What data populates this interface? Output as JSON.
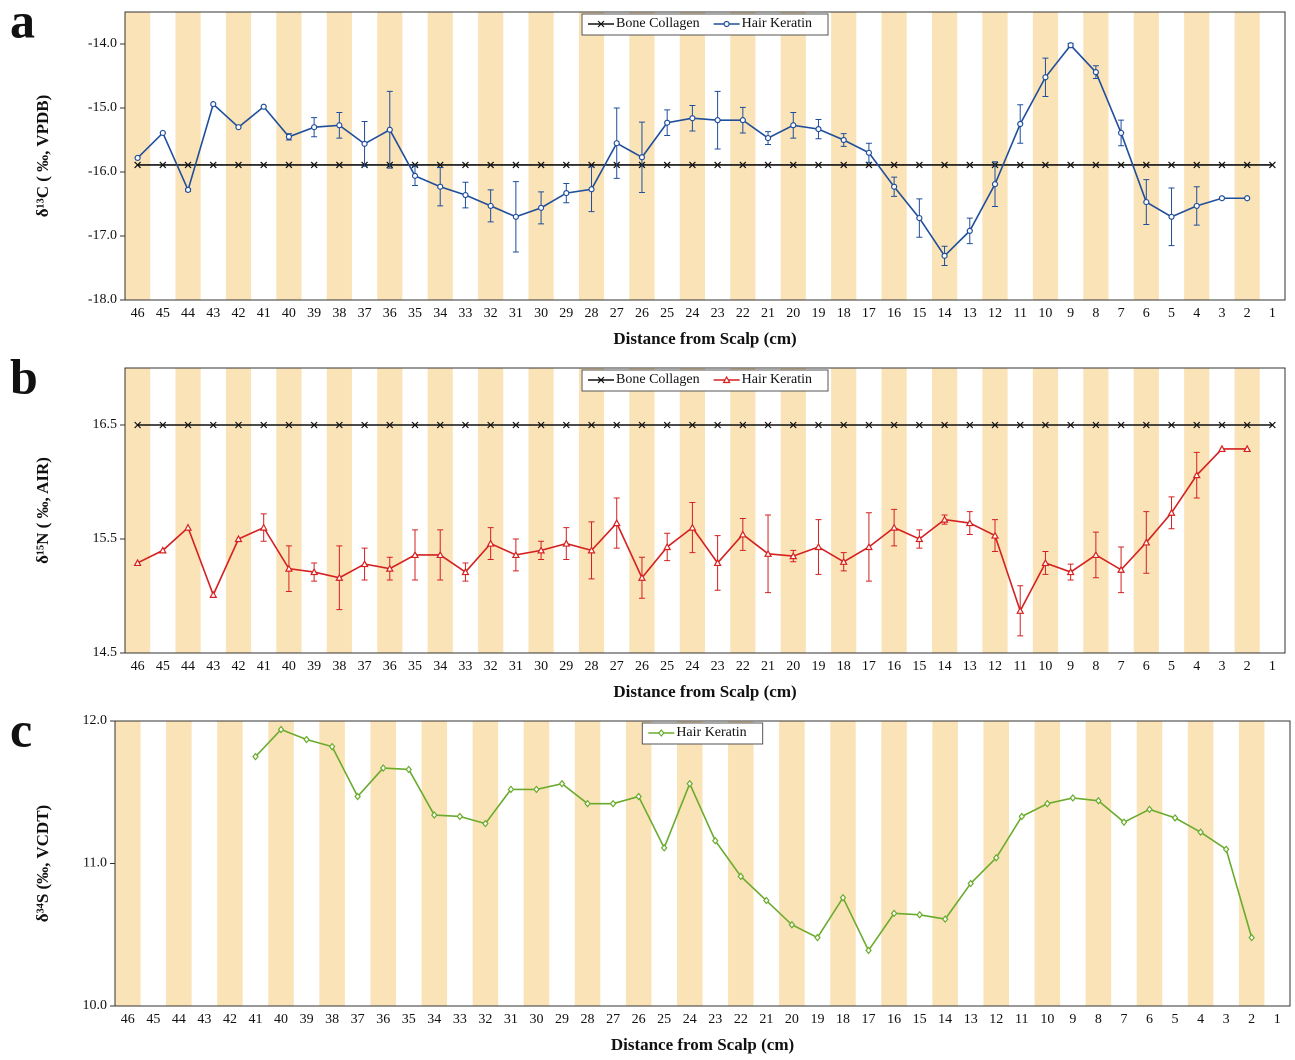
{
  "chart_data": [
    {
      "type": "line",
      "label": "a",
      "ylabel": "δ¹³C ( ‰, VPDB)",
      "xlabel": "Distance from Scalp  (cm)",
      "categories": [
        "46",
        "45",
        "44",
        "43",
        "42",
        "41",
        "40",
        "39",
        "38",
        "37",
        "36",
        "35",
        "34",
        "33",
        "32",
        "31",
        "30",
        "29",
        "28",
        "27",
        "26",
        "25",
        "24",
        "23",
        "22",
        "21",
        "20",
        "19",
        "18",
        "17",
        "16",
        "15",
        "14",
        "13",
        "12",
        "11",
        "10",
        "9",
        "8",
        "7",
        "6",
        "5",
        "4",
        "3",
        "2",
        "1"
      ],
      "ylim": [
        -18,
        -13.5
      ],
      "yticks": [
        {
          "value": -18,
          "label": "-18.0"
        },
        {
          "value": -17,
          "label": "-17.0"
        },
        {
          "value": -16,
          "label": "-16.0"
        },
        {
          "value": -15,
          "label": "-15.0"
        },
        {
          "value": -14,
          "label": "-14.0"
        }
      ],
      "band_color": "#fbe3b8",
      "series": [
        {
          "name": "Bone Collagen",
          "color": "#111111",
          "marker": "x",
          "values": [
            -15.89,
            -15.89,
            -15.89,
            -15.89,
            -15.89,
            -15.89,
            -15.89,
            -15.89,
            -15.89,
            -15.89,
            -15.89,
            -15.89,
            -15.89,
            -15.89,
            -15.89,
            -15.89,
            -15.89,
            -15.89,
            -15.89,
            -15.89,
            -15.89,
            -15.89,
            -15.89,
            -15.89,
            -15.89,
            -15.89,
            -15.89,
            -15.89,
            -15.89,
            -15.89,
            -15.89,
            -15.89,
            -15.89,
            -15.89,
            -15.89,
            -15.89,
            -15.89,
            -15.89,
            -15.89,
            -15.89,
            -15.89,
            -15.89,
            -15.89,
            -15.89,
            -15.89,
            -15.89
          ]
        },
        {
          "name": "Hair Keratin",
          "color": "#1f4e9a",
          "marker": "circle",
          "values": [
            -15.78,
            -15.39,
            -16.28,
            -14.94,
            -15.3,
            -14.98,
            -15.45,
            -15.3,
            -15.27,
            -15.56,
            -15.34,
            -16.06,
            -16.23,
            -16.36,
            -16.53,
            -16.7,
            -16.56,
            -16.33,
            -16.27,
            -15.55,
            -15.77,
            -15.23,
            -15.16,
            -15.19,
            -15.19,
            -15.47,
            -15.27,
            -15.33,
            -15.5,
            -15.7,
            -16.23,
            -16.72,
            -17.31,
            -16.92,
            -16.19,
            -15.25,
            -14.52,
            -14.02,
            -14.44,
            -15.39,
            -16.47,
            -16.7,
            -16.53,
            -16.41,
            -16.41,
            null
          ],
          "errors": [
            null,
            null,
            0.02,
            null,
            null,
            null,
            0.05,
            0.15,
            0.2,
            0.35,
            0.6,
            0.15,
            0.3,
            0.2,
            0.25,
            0.55,
            0.25,
            0.15,
            0.35,
            0.55,
            0.55,
            0.2,
            0.2,
            0.45,
            0.2,
            0.1,
            0.2,
            0.15,
            0.1,
            0.15,
            0.15,
            0.3,
            0.15,
            0.2,
            0.35,
            0.3,
            0.3,
            0.03,
            0.1,
            0.2,
            0.35,
            0.45,
            0.3,
            null,
            null,
            null
          ]
        }
      ]
    },
    {
      "type": "line",
      "label": "b",
      "ylabel": "δ¹⁵N ( ‰, AIR)",
      "xlabel": "Distance from Scalp (cm)",
      "categories": [
        "46",
        "45",
        "44",
        "43",
        "42",
        "41",
        "40",
        "39",
        "38",
        "37",
        "36",
        "35",
        "34",
        "33",
        "32",
        "31",
        "30",
        "29",
        "28",
        "27",
        "26",
        "25",
        "24",
        "23",
        "22",
        "21",
        "20",
        "19",
        "18",
        "17",
        "16",
        "15",
        "14",
        "13",
        "12",
        "11",
        "10",
        "9",
        "8",
        "7",
        "6",
        "5",
        "4",
        "3",
        "2",
        "1"
      ],
      "ylim": [
        14.5,
        17.0
      ],
      "yticks": [
        14.5,
        15.5,
        16.5
      ],
      "band_color": "#fbe3b8",
      "series": [
        {
          "name": "Bone Collagen",
          "color": "#111111",
          "marker": "x",
          "values": [
            16.5,
            16.5,
            16.5,
            16.5,
            16.5,
            16.5,
            16.5,
            16.5,
            16.5,
            16.5,
            16.5,
            16.5,
            16.5,
            16.5,
            16.5,
            16.5,
            16.5,
            16.5,
            16.5,
            16.5,
            16.5,
            16.5,
            16.5,
            16.5,
            16.5,
            16.5,
            16.5,
            16.5,
            16.5,
            16.5,
            16.5,
            16.5,
            16.5,
            16.5,
            16.5,
            16.5,
            16.5,
            16.5,
            16.5,
            16.5,
            16.5,
            16.5,
            16.5,
            16.5,
            16.5,
            16.5
          ]
        },
        {
          "name": "Hair Keratin",
          "color": "#d42020",
          "marker": "triangle",
          "values": [
            15.29,
            15.4,
            15.6,
            15.01,
            15.5,
            15.6,
            15.24,
            15.21,
            15.16,
            15.28,
            15.24,
            15.36,
            15.36,
            15.21,
            15.46,
            15.36,
            15.4,
            15.46,
            15.4,
            15.64,
            15.16,
            15.43,
            15.6,
            15.29,
            15.54,
            15.37,
            15.35,
            15.43,
            15.3,
            15.43,
            15.6,
            15.5,
            15.67,
            15.64,
            15.53,
            14.87,
            15.29,
            15.21,
            15.36,
            15.23,
            15.47,
            15.73,
            16.06,
            16.29,
            16.29,
            null
          ],
          "errors": [
            null,
            null,
            null,
            null,
            null,
            0.12,
            0.2,
            0.08,
            0.28,
            0.14,
            0.1,
            0.22,
            0.22,
            0.08,
            0.14,
            0.14,
            0.08,
            0.14,
            0.25,
            0.22,
            0.18,
            0.12,
            0.22,
            0.24,
            0.14,
            0.34,
            0.05,
            0.24,
            0.08,
            0.3,
            0.16,
            0.08,
            0.04,
            0.1,
            0.14,
            0.22,
            0.1,
            0.07,
            0.2,
            0.2,
            0.27,
            0.14,
            0.2,
            null,
            null,
            null
          ]
        }
      ]
    },
    {
      "type": "line",
      "label": "c",
      "ylabel": "δ³⁴S (‰, VCDT)",
      "xlabel": "Distance from Scalp (cm)",
      "categories": [
        "46",
        "45",
        "44",
        "43",
        "42",
        "41",
        "40",
        "39",
        "38",
        "37",
        "36",
        "35",
        "34",
        "33",
        "32",
        "31",
        "30",
        "29",
        "28",
        "27",
        "26",
        "25",
        "24",
        "23",
        "22",
        "21",
        "20",
        "19",
        "18",
        "17",
        "16",
        "15",
        "14",
        "13",
        "12",
        "11",
        "10",
        "9",
        "8",
        "7",
        "6",
        "5",
        "4",
        "3",
        "2",
        "1"
      ],
      "ylim": [
        10,
        12
      ],
      "yticks": [
        {
          "value": 10,
          "label": "10.0"
        },
        {
          "value": 11,
          "label": "11.0"
        },
        {
          "value": 12,
          "label": "12.0"
        }
      ],
      "band_color": "#fbe3b8",
      "series": [
        {
          "name": "Hair Keratin",
          "color": "#6aab2e",
          "marker": "diamond",
          "values": [
            null,
            null,
            null,
            null,
            null,
            11.75,
            11.94,
            11.87,
            11.82,
            11.47,
            11.67,
            11.66,
            11.34,
            11.33,
            11.28,
            11.52,
            11.52,
            11.56,
            11.42,
            11.42,
            11.47,
            11.11,
            11.56,
            11.16,
            10.91,
            10.74,
            10.57,
            10.48,
            10.76,
            10.39,
            10.65,
            10.64,
            10.61,
            10.86,
            11.04,
            11.33,
            11.42,
            11.46,
            11.44,
            11.29,
            11.38,
            11.32,
            11.22,
            11.1,
            10.48,
            null
          ]
        }
      ]
    }
  ]
}
